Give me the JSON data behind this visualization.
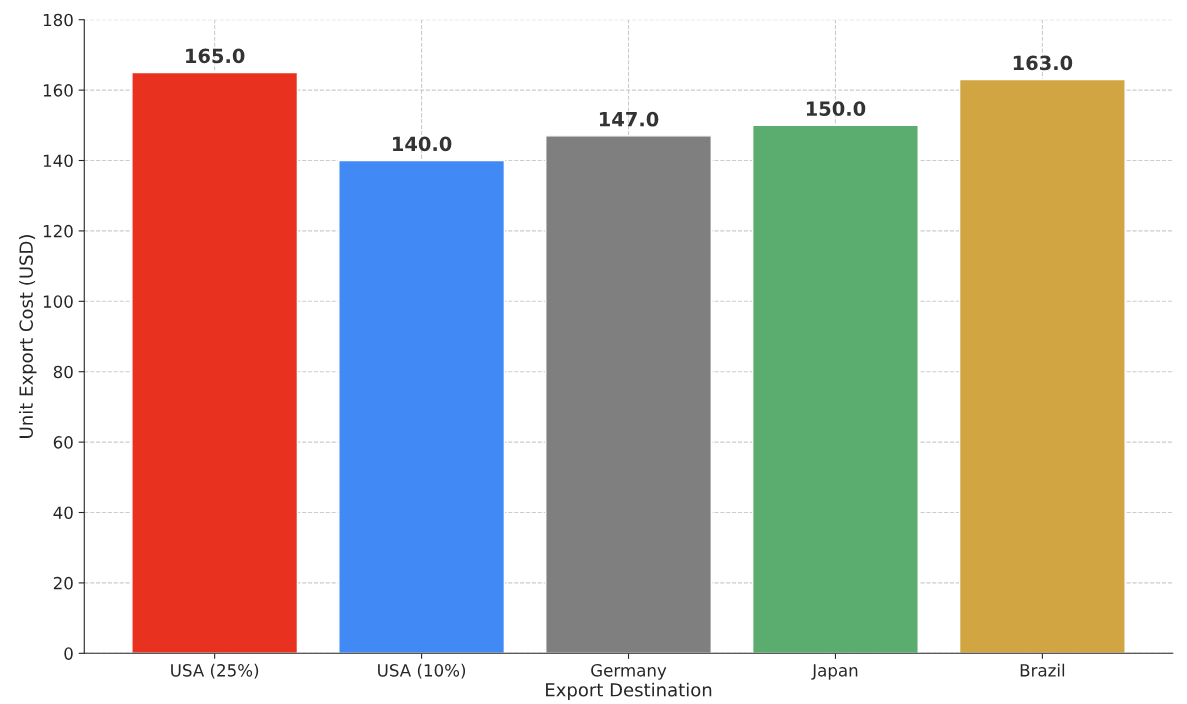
{
  "chart_data": {
    "type": "bar",
    "xlabel": "Export Destination",
    "ylabel": "Unit Export Cost (USD)",
    "categories": [
      "USA (25%)",
      "USA (10%)",
      "Germany",
      "Japan",
      "Brazil"
    ],
    "values": [
      165,
      140,
      147,
      150,
      163
    ],
    "colors": [
      "#e8321f",
      "#4189f4",
      "#7f7f7f",
      "#5aad6f",
      "#d1a541"
    ],
    "value_labels": [
      "165.0",
      "140.0",
      "147.0",
      "150.0",
      "163.0"
    ],
    "ylim": [
      0,
      180
    ],
    "yticks": [
      0,
      20,
      40,
      60,
      80,
      100,
      120,
      140,
      160,
      180
    ],
    "grid": true
  }
}
